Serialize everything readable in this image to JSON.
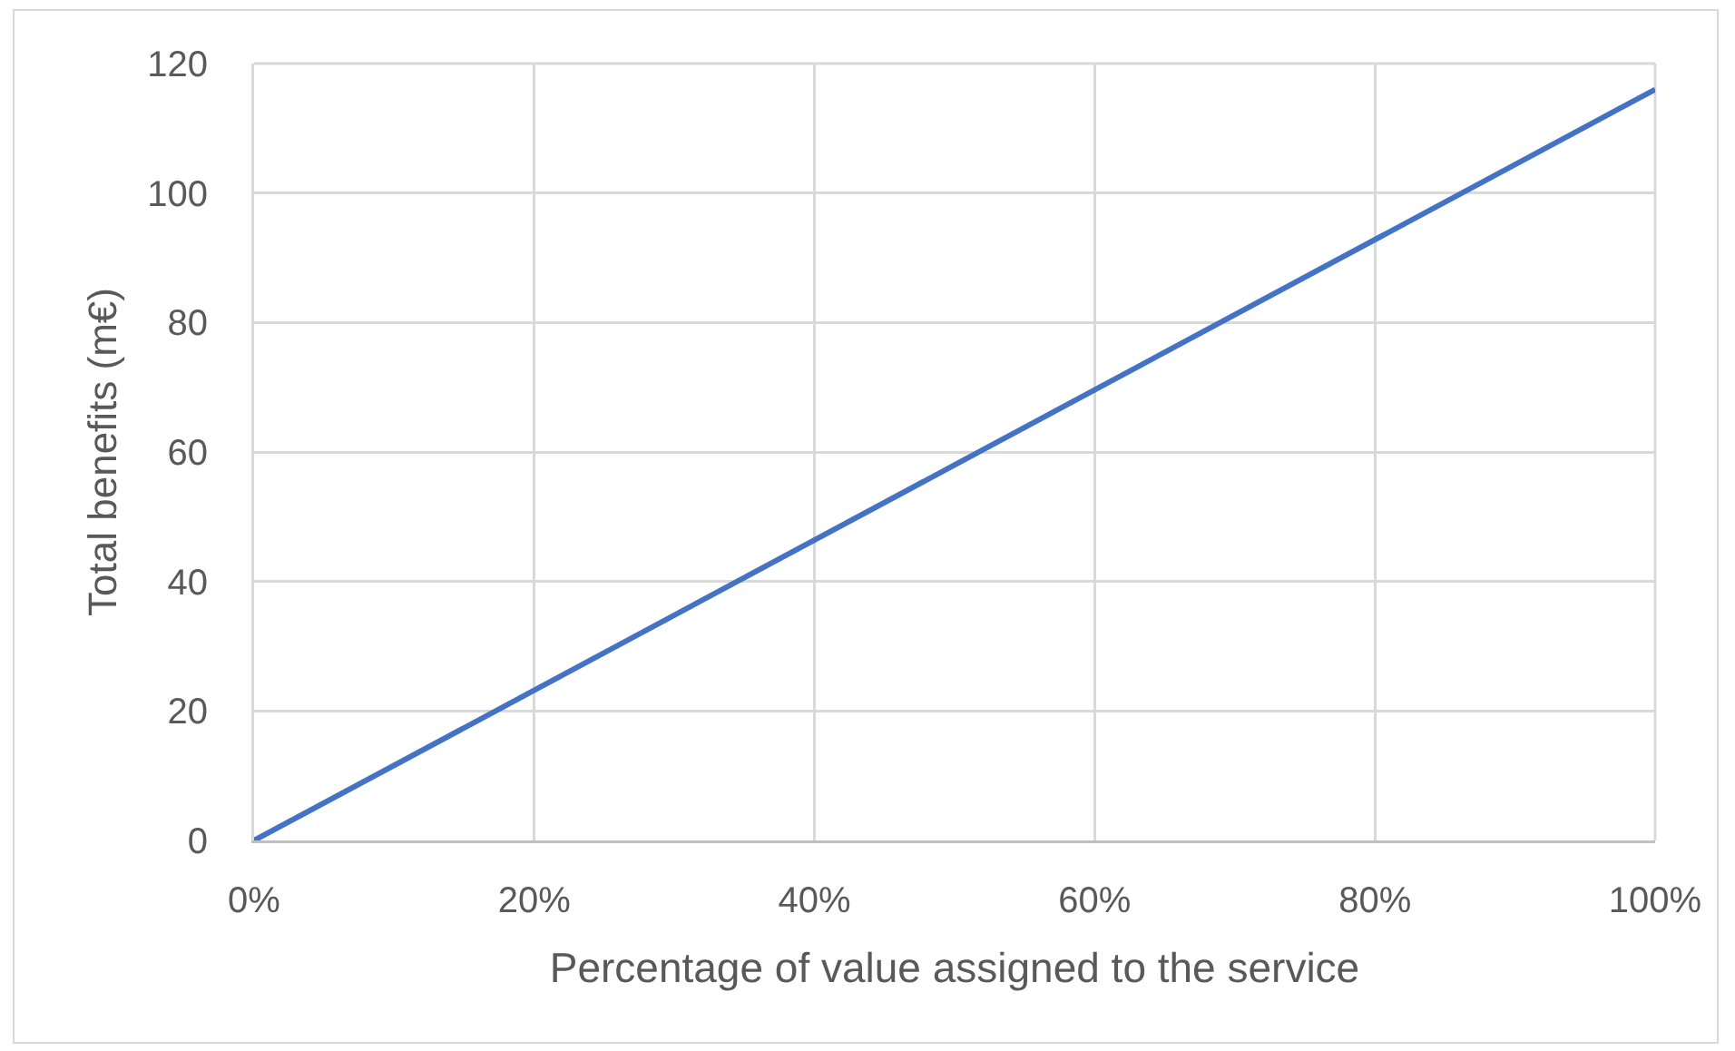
{
  "chart_data": {
    "type": "line",
    "xlabel": "Percentage of value assigned to the service",
    "ylabel": "Total benefits (m€)",
    "x": [
      0,
      100
    ],
    "values": [
      0,
      116
    ],
    "color": "#4472c4",
    "xlim": [
      0,
      100
    ],
    "xticks": [
      {
        "value": 0,
        "label": "0%"
      },
      {
        "value": 20,
        "label": "20%"
      },
      {
        "value": 40,
        "label": "40%"
      },
      {
        "value": 60,
        "label": "60%"
      },
      {
        "value": 80,
        "label": "80%"
      },
      {
        "value": 100,
        "label": "100%"
      }
    ],
    "ylim": [
      0,
      120
    ],
    "yticks": [
      0,
      20,
      40,
      60,
      80,
      100,
      120
    ],
    "grid": true
  }
}
